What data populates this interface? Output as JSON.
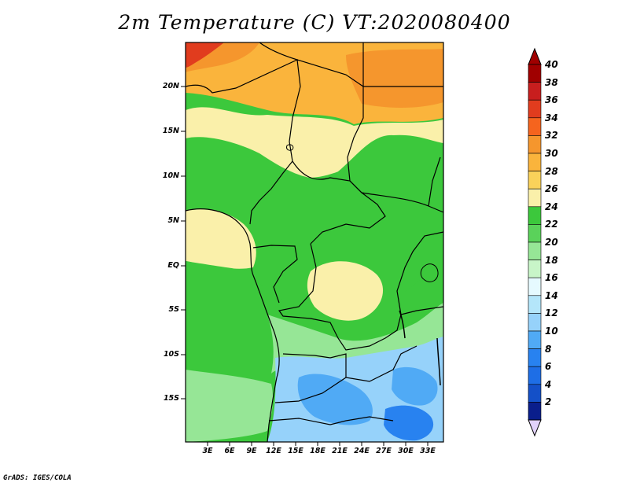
{
  "title": "2m Temperature (C) VT:2020080400",
  "footer": "GrADS: IGES/COLA",
  "lat_labels": [
    "20N",
    "15N",
    "10N",
    "5N",
    "EQ",
    "5S",
    "10S",
    "15S"
  ],
  "lon_labels": [
    "3E",
    "6E",
    "9E",
    "12E",
    "15E",
    "18E",
    "21E",
    "24E",
    "27E",
    "30E",
    "33E"
  ],
  "colorbar": {
    "labels": [
      "40",
      "38",
      "36",
      "34",
      "32",
      "30",
      "28",
      "26",
      "24",
      "22",
      "20",
      "18",
      "16",
      "14",
      "12",
      "10",
      "8",
      "6",
      "4",
      "2"
    ],
    "colors": [
      "#a00000",
      "#c81e1e",
      "#e13c1e",
      "#f5641e",
      "#f5962d",
      "#fab43c",
      "#fad25a",
      "#faf0aa",
      "#3cc83c",
      "#5ad25a",
      "#96e696",
      "#c8f5c8",
      "#e6faff",
      "#b4e6fa",
      "#96d2fa",
      "#50aaf5",
      "#2882f0",
      "#1e6ee6",
      "#1450c8",
      "#0a1e8c"
    ],
    "top_arrow_color": "#a00000",
    "bottom_arrow_color": "#e1d2fa"
  },
  "map_colors": {
    "hot": "#f5962d",
    "warm": "#fab43c",
    "mild": "#fad25a",
    "pale": "#faf0aa",
    "green": "#3cc83c",
    "lightgreen": "#96e696",
    "palegreen": "#c8f5c8",
    "blue": "#96d2fa",
    "midblue": "#50aaf5",
    "deepblue": "#2882f0"
  }
}
